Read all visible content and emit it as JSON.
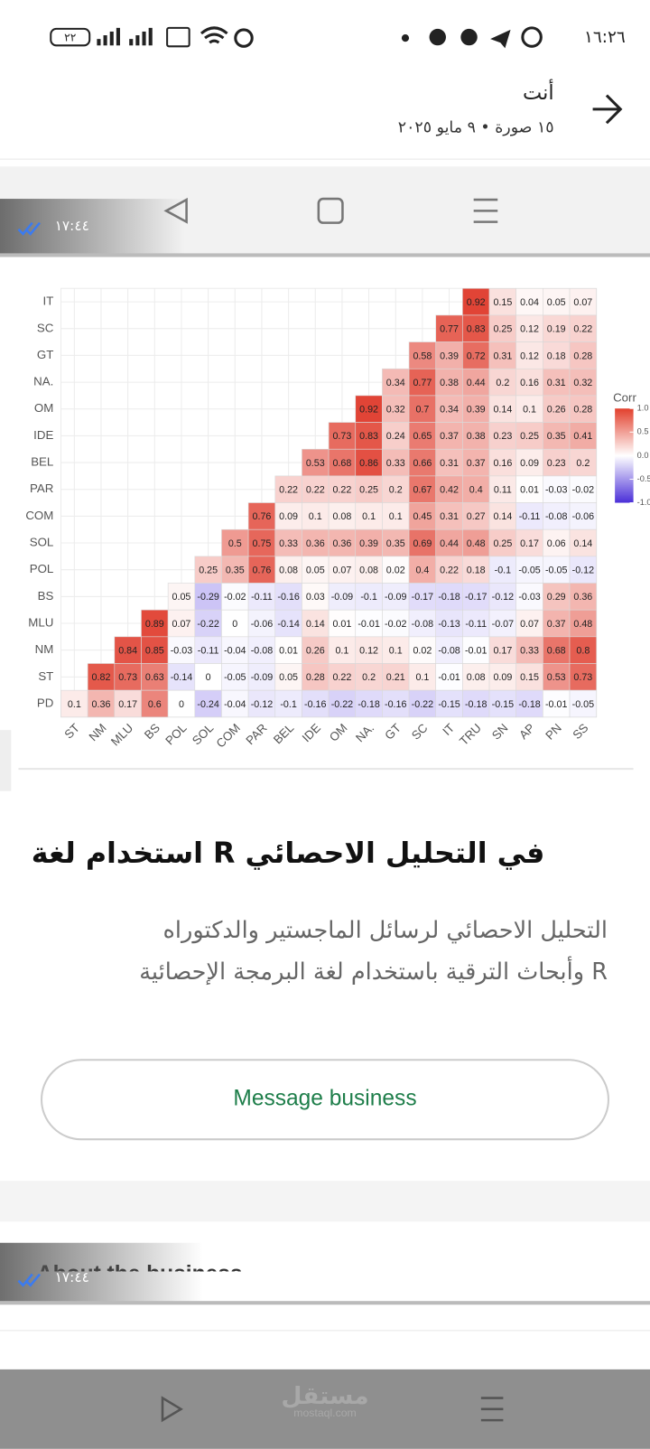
{
  "status_bar": {
    "time": "١٦:٢٦",
    "battery": "٢٢"
  },
  "header": {
    "title": "أنت",
    "subtitle": "١٥ صورة • ٩ مايو ٢٠٢٥"
  },
  "overlay_timestamps": [
    "١٧:٤٤",
    "١٧:٤٤"
  ],
  "heatmap": {
    "rows": [
      "IT",
      "SC",
      "GT",
      "NA.",
      "OM",
      "IDE",
      "BEL",
      "PAR",
      "COM",
      "SOL",
      "POL",
      "BS",
      "MLU",
      "NM",
      "ST",
      "PD"
    ],
    "columns": [
      "ST",
      "NM",
      "MLU",
      "BS",
      "POL",
      "SOL",
      "COM",
      "PAR",
      "BEL",
      "IDE",
      "OM",
      "NA.",
      "GT",
      "SC",
      "IT",
      "TRU",
      "SN",
      "AP",
      "PN",
      "SS"
    ],
    "values": [
      [
        null,
        null,
        null,
        null,
        null,
        null,
        null,
        null,
        null,
        null,
        null,
        null,
        null,
        null,
        null,
        0.92,
        0.15,
        0.04,
        0.05,
        0.07
      ],
      [
        null,
        null,
        null,
        null,
        null,
        null,
        null,
        null,
        null,
        null,
        null,
        null,
        null,
        null,
        0.77,
        0.83,
        0.25,
        0.12,
        0.19,
        0.22
      ],
      [
        null,
        null,
        null,
        null,
        null,
        null,
        null,
        null,
        null,
        null,
        null,
        null,
        null,
        0.58,
        0.39,
        0.72,
        0.31,
        0.12,
        0.18,
        0.28
      ],
      [
        null,
        null,
        null,
        null,
        null,
        null,
        null,
        null,
        null,
        null,
        null,
        null,
        0.34,
        0.77,
        0.38,
        0.44,
        0.2,
        0.16,
        0.31,
        0.32
      ],
      [
        null,
        null,
        null,
        null,
        null,
        null,
        null,
        null,
        null,
        null,
        null,
        0.92,
        0.32,
        0.7,
        0.34,
        0.39,
        0.14,
        0.1,
        0.26,
        0.28
      ],
      [
        null,
        null,
        null,
        null,
        null,
        null,
        null,
        null,
        null,
        null,
        0.73,
        0.83,
        0.24,
        0.65,
        0.37,
        0.38,
        0.23,
        0.25,
        0.35,
        0.41
      ],
      [
        null,
        null,
        null,
        null,
        null,
        null,
        null,
        null,
        null,
        0.53,
        0.68,
        0.86,
        0.33,
        0.66,
        0.31,
        0.37,
        0.16,
        0.09,
        0.23,
        0.2
      ],
      [
        null,
        null,
        null,
        null,
        null,
        null,
        null,
        null,
        0.22,
        0.22,
        0.22,
        0.25,
        0.2,
        0.67,
        0.42,
        0.4,
        0.11,
        0.01,
        -0.03,
        -0.02
      ],
      [
        null,
        null,
        null,
        null,
        null,
        null,
        null,
        0.76,
        0.09,
        0.1,
        0.08,
        0.1,
        0.1,
        0.45,
        0.31,
        0.27,
        0.14,
        -0.11,
        -0.08,
        -0.06
      ],
      [
        null,
        null,
        null,
        null,
        null,
        null,
        0.5,
        0.75,
        0.33,
        0.36,
        0.36,
        0.39,
        0.35,
        0.69,
        0.44,
        0.48,
        0.25,
        0.17,
        0.06,
        0.14
      ],
      [
        null,
        null,
        null,
        null,
        null,
        0.25,
        0.35,
        0.76,
        0.08,
        0.05,
        0.07,
        0.08,
        0.02,
        0.4,
        0.22,
        0.18,
        -0.1,
        -0.05,
        -0.05,
        -0.12
      ],
      [
        null,
        null,
        null,
        null,
        0.05,
        -0.29,
        -0.02,
        -0.11,
        -0.16,
        0.03,
        -0.09,
        -0.1,
        -0.09,
        -0.17,
        -0.18,
        -0.17,
        -0.12,
        -0.03,
        0.29,
        0.36
      ],
      [
        null,
        null,
        null,
        0.89,
        0.07,
        -0.22,
        0,
        -0.06,
        -0.14,
        0.14,
        0.01,
        -0.01,
        -0.02,
        -0.08,
        -0.13,
        -0.11,
        -0.07,
        0.07,
        0.37,
        0.48
      ],
      [
        null,
        null,
        0.84,
        0.85,
        -0.03,
        -0.11,
        -0.04,
        -0.08,
        0.01,
        0.26,
        0.1,
        0.12,
        0.1,
        0.02,
        -0.08,
        -0.01,
        0.17,
        0.33,
        0.68,
        0.8
      ],
      [
        null,
        0.82,
        0.73,
        0.63,
        -0.14,
        0,
        -0.05,
        -0.09,
        0.05,
        0.28,
        0.22,
        0.2,
        0.21,
        0.1,
        -0.01,
        0.08,
        0.09,
        0.15,
        0.53,
        0.73
      ],
      [
        0.1,
        0.36,
        0.17,
        0.6,
        0,
        -0.24,
        -0.04,
        -0.12,
        -0.1,
        -0.16,
        -0.22,
        -0.18,
        -0.16,
        -0.22,
        -0.15,
        -0.18,
        -0.15,
        -0.18,
        -0.01,
        -0.05
      ]
    ],
    "legend_title": "Corr",
    "legend_ticks": [
      {
        "value": 1,
        "label": "1.0"
      },
      {
        "value": 0.5,
        "label": "0.5"
      },
      {
        "value": 0,
        "label": "0.0"
      },
      {
        "value": -0.5,
        "label": "-0.5"
      },
      {
        "value": -1,
        "label": "-1.0"
      }
    ]
  },
  "post": {
    "title": "استخدام لغة R في التحليل الاحصائي",
    "description": [
      "التحليل الاحصائي لرسائل الماجستير والدكتوراه",
      "وأبحاث الترقية باستخدام لغة البرمجة الإحصائية R"
    ],
    "button": "Message business",
    "next_section": "About the business"
  },
  "watermark": {
    "arabic": "مستقل",
    "latin": "mostaql.com"
  }
}
